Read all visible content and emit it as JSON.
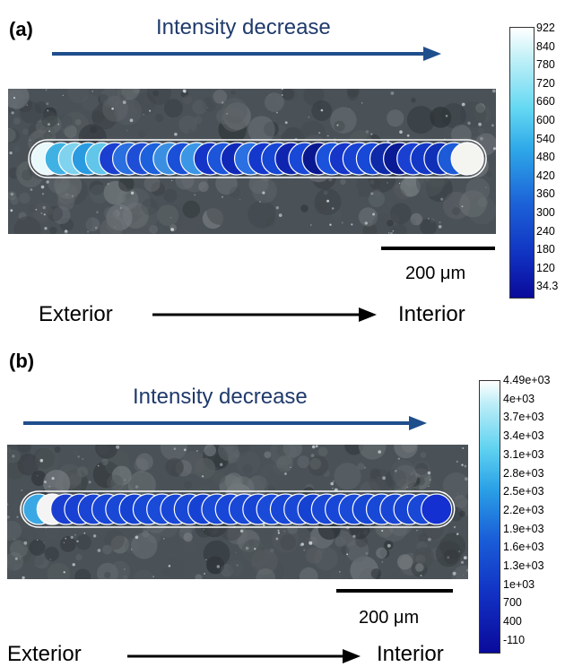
{
  "panel_a": {
    "label": "(a)",
    "intensity_label": "Intensity decrease",
    "scale_label": "200 μm",
    "exterior_label": "Exterior",
    "interior_label": "Interior",
    "colorbar_ticks": [
      "922",
      "840",
      "780",
      "720",
      "660",
      "600",
      "540",
      "480",
      "420",
      "360",
      "300",
      "240",
      "180",
      "120",
      "34.3"
    ],
    "spot_colors": [
      "#e8f8fb",
      "#3fb2e3",
      "#7fd3ee",
      "#2a9be0",
      "#62c6ea",
      "#1a3fd0",
      "#2a6fe0",
      "#1f4ed6",
      "#1c60dc",
      "#3b8fe2",
      "#1a4fd8",
      "#3b96e6",
      "#1535c9",
      "#1c55da",
      "#1028b8",
      "#2a70e2",
      "#1538cc",
      "#1646d4",
      "#0f25b0",
      "#1a48d6",
      "#0a1890",
      "#1a52dc",
      "#1536c8",
      "#1842d2",
      "#1848d6",
      "#0e2aa8",
      "#0a1a95",
      "#1a40d2",
      "#1438c6",
      "#1030b8",
      "#1c5ad8",
      "#f4f4f0"
    ],
    "accent_color": "#1f4e8c"
  },
  "panel_b": {
    "label": "(b)",
    "intensity_label": "Intensity decrease",
    "scale_label": "200 μm",
    "exterior_label": "Exterior",
    "interior_label": "Interior",
    "colorbar_ticks": [
      "4.49e+03",
      "4e+03",
      "3.7e+03",
      "3.4e+03",
      "3.1e+03",
      "2.8e+03",
      "2.5e+03",
      "2.2e+03",
      "1.9e+03",
      "1.6e+03",
      "1.3e+03",
      "1e+03",
      "700",
      "400",
      "-110"
    ],
    "spot_colors": [
      "#3aa8e4",
      "#f4f4f4",
      "#1a3fd0",
      "#1840d2",
      "#1a44d4",
      "#1846d6",
      "#1a48d6",
      "#1642d2",
      "#1848d6",
      "#1a4ad8",
      "#1846d6",
      "#1a48d6",
      "#1642d4",
      "#1a4ad8",
      "#1846d6",
      "#1a48d6",
      "#1644d4",
      "#1a4ad8",
      "#1846d6",
      "#1a48d6",
      "#1642d2",
      "#1a48d6",
      "#1846d6",
      "#1a4ad8",
      "#1646d4",
      "#1848d6",
      "#1a46d6",
      "#1844d4",
      "#1a48d6",
      "#1430d0"
    ],
    "accent_color": "#1f4e8c"
  }
}
